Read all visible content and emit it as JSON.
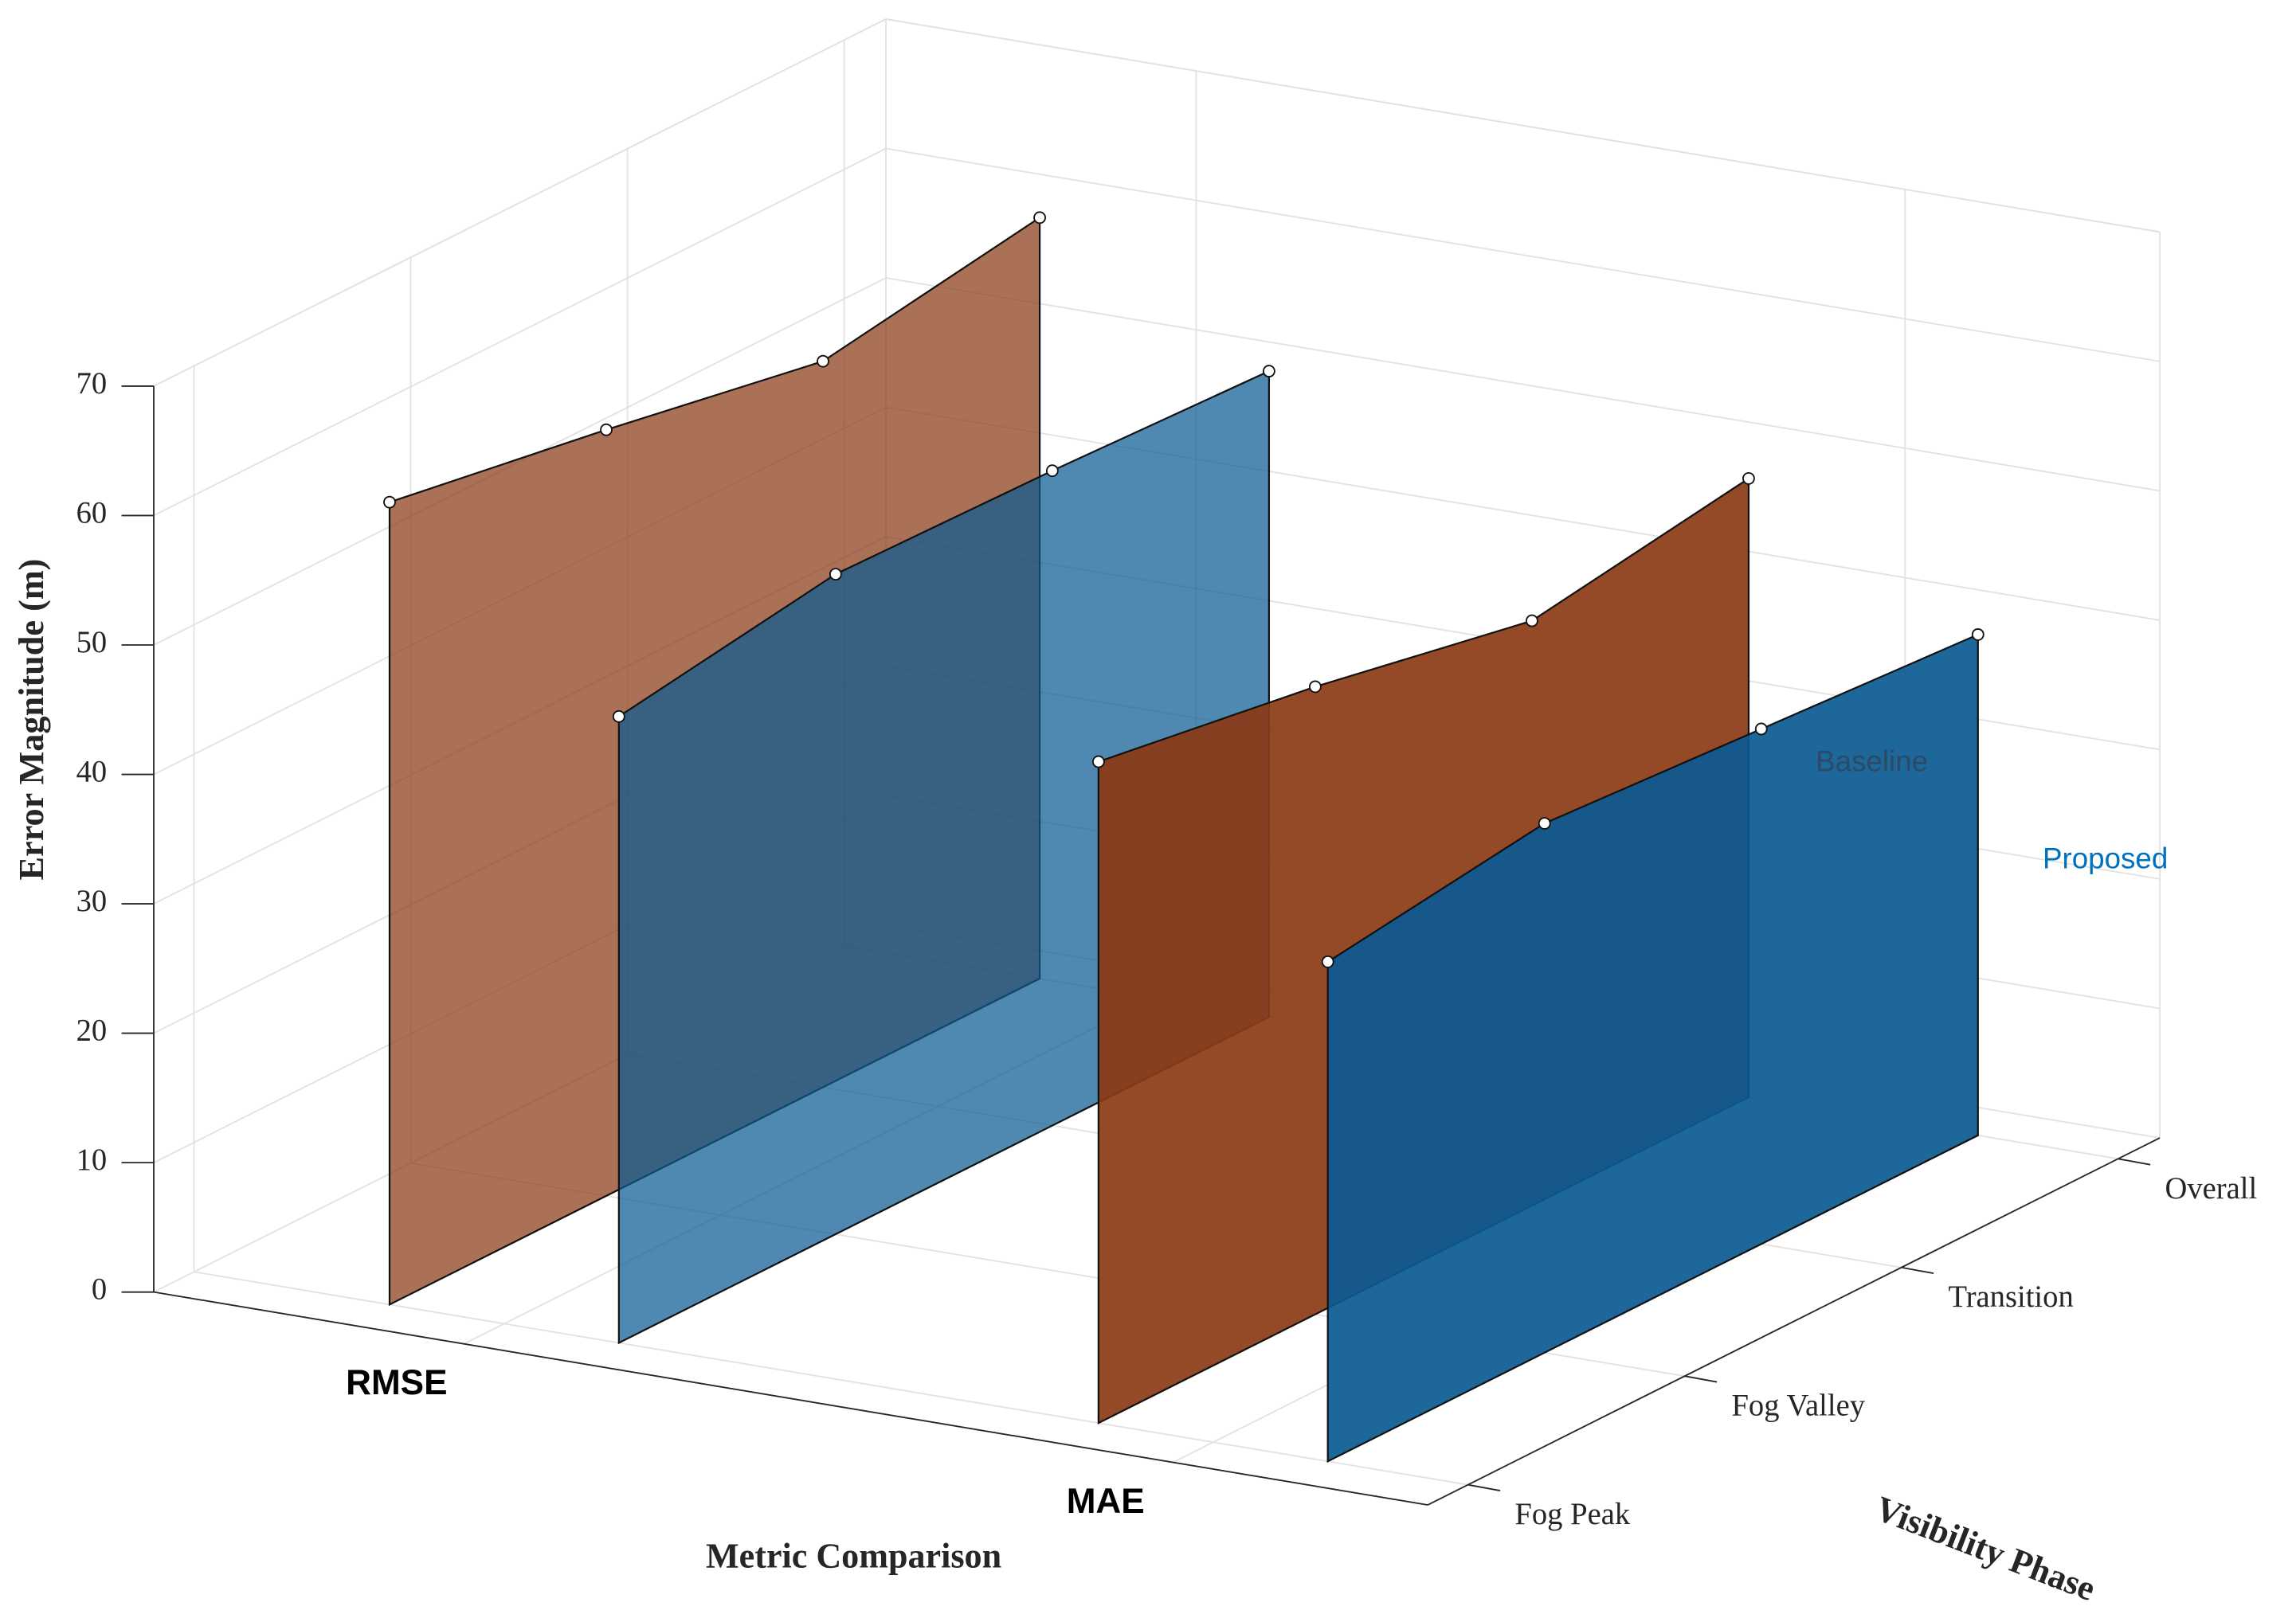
{
  "chart_data": {
    "type": "ribbon3d",
    "zlabel": "Error Magnitude (m)",
    "xlabel": "Metric Comparison",
    "ylabel": "Visibility Phase",
    "metrics": [
      "RMSE",
      "MAE"
    ],
    "phases": [
      "Fog Peak",
      "Fog Valley",
      "Transition",
      "Overall"
    ],
    "series": [
      {
        "name": "Baseline",
        "color": "#8b3a15",
        "values": [
          [
            62.0,
            59.2,
            56.1,
            58.8
          ],
          [
            51.1,
            48.5,
            45.2,
            47.8
          ]
        ]
      },
      {
        "name": "Proposed",
        "color": "#0b5a91",
        "values": [
          [
            48.4,
            51.0,
            50.6,
            49.9
          ],
          [
            38.6,
            40.9,
            39.8,
            38.7
          ]
        ]
      }
    ],
    "zlim": [
      0,
      70
    ],
    "zticks": [
      0,
      10,
      20,
      30,
      40,
      50,
      60,
      70
    ],
    "grid": true
  }
}
